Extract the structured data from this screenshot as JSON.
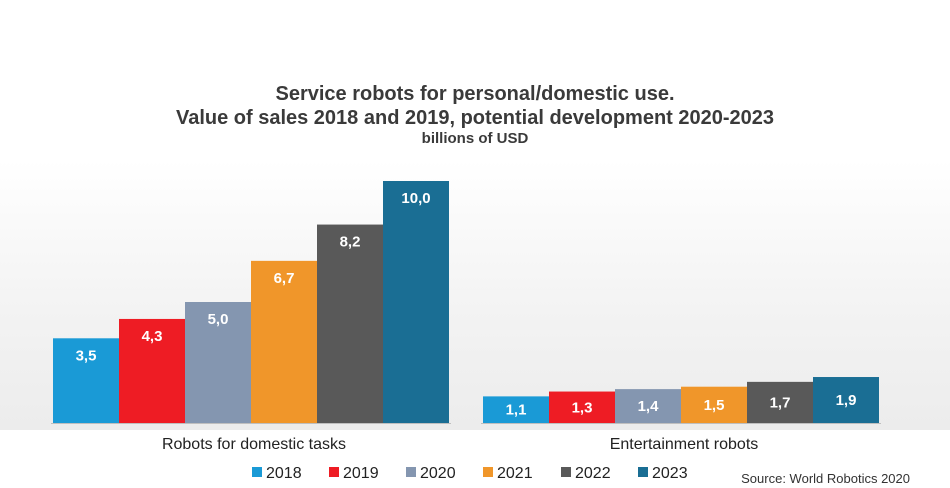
{
  "chart_data": {
    "type": "bar",
    "title_line1": "Service robots for personal/domestic use.",
    "title_line2": "Value of sales 2018 and 2019, potential development 2020-2023",
    "subtitle": "billions of USD",
    "categories": [
      "Robots for domestic tasks",
      "Entertainment robots"
    ],
    "series": [
      {
        "name": "2018",
        "values": [
          3.5,
          1.1
        ],
        "labels": [
          "3,5",
          "1,1"
        ],
        "color": "#1a9ad6"
      },
      {
        "name": "2019",
        "values": [
          4.3,
          1.3
        ],
        "labels": [
          "4,3",
          "1,3"
        ],
        "color": "#ee1c24"
      },
      {
        "name": "2020",
        "values": [
          5.0,
          1.4
        ],
        "labels": [
          "5,0",
          "1,4"
        ],
        "color": "#8496b0"
      },
      {
        "name": "2021",
        "values": [
          6.7,
          1.5
        ],
        "labels": [
          "6,7",
          "1,5"
        ],
        "color": "#f0962a"
      },
      {
        "name": "2022",
        "values": [
          8.2,
          1.7
        ],
        "labels": [
          "8,2",
          "1,7"
        ],
        "color": "#595959"
      },
      {
        "name": "2023",
        "values": [
          10.0,
          1.9
        ],
        "labels": [
          "10,0",
          "1,9"
        ],
        "color": "#1a6e94"
      }
    ],
    "ylim": [
      0,
      10
    ],
    "grid": false,
    "legend_position": "bottom",
    "source": "Source: World Robotics 2020"
  }
}
